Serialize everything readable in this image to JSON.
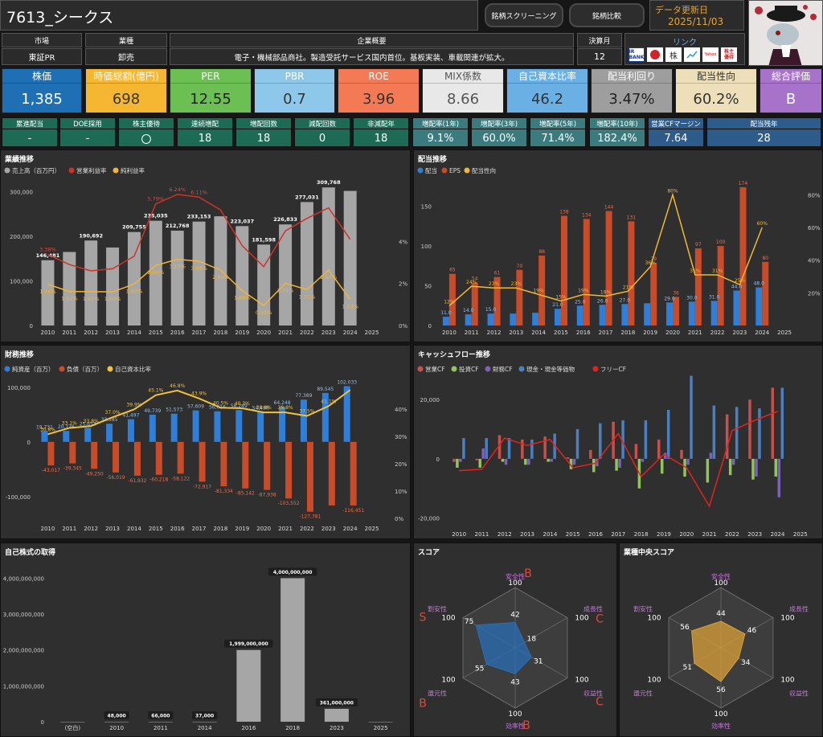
{
  "header": {
    "title": "7613_シークス",
    "screening_label": "銘柄スクリーニング",
    "compare_label": "銘柄比較",
    "update_label": "データ更新日",
    "update_date": "2025/11/03"
  },
  "info": {
    "market_label": "市場",
    "market_value": "東証PR",
    "industry_label": "業種",
    "industry_value": "卸売",
    "overview_label": "企業概要",
    "overview_value": "電子・機械部品商社。製造受託サービス国内首位。基板実装、車載関連が拡大。",
    "fiscal_label": "決算月",
    "fiscal_value": "12",
    "link_label": "リンク",
    "links": [
      "IR BANK",
      "kabutan",
      "株",
      "minkabu",
      "Yahoo",
      "株主優待"
    ]
  },
  "kpis": [
    {
      "label": "株価",
      "value": "1,385",
      "bg": "#1f6fb5",
      "lblcolor": "#fff",
      "valcolor": "#fff"
    },
    {
      "label": "時価総額(億円)",
      "value": "698",
      "bg": "#f5b731",
      "lblcolor": "#fff",
      "valcolor": "#333"
    },
    {
      "label": "PER",
      "value": "12.55",
      "bg": "#6cbf52",
      "lblcolor": "#fff",
      "valcolor": "#222"
    },
    {
      "label": "PBR",
      "value": "0.7",
      "bg": "#8dc8ea",
      "lblcolor": "#fff",
      "valcolor": "#333"
    },
    {
      "label": "ROE",
      "value": "3.96",
      "bg": "#f47a56",
      "lblcolor": "#fff",
      "valcolor": "#333"
    },
    {
      "label": "MIX係数",
      "value": "8.66",
      "bg": "#e8e8e8",
      "lblcolor": "#555",
      "valcolor": "#555"
    },
    {
      "label": "自己資本比率",
      "value": "46.2",
      "bg": "#6ab0e5",
      "lblcolor": "#fff",
      "valcolor": "#333"
    },
    {
      "label": "配当利回り",
      "value": "3.47%",
      "bg": "#9e9e9e",
      "lblcolor": "#fff",
      "valcolor": "#222"
    },
    {
      "label": "配当性向",
      "value": "60.2%",
      "bg": "#ecdfba",
      "lblcolor": "#333",
      "valcolor": "#333"
    },
    {
      "label": "総合評価",
      "value": "B",
      "bg": "#a772c9",
      "lblcolor": "#fff",
      "valcolor": "#fff"
    }
  ],
  "small": [
    {
      "label": "累進配当",
      "value": "-"
    },
    {
      "label": "DOE採用",
      "value": "-"
    },
    {
      "label": "株主優待",
      "value": "〇"
    },
    {
      "label": "連続増配",
      "value": "18"
    },
    {
      "label": "増配回数",
      "value": "18"
    },
    {
      "label": "減配回数",
      "value": "0"
    },
    {
      "label": "非減配年",
      "value": "18"
    },
    {
      "label": "増配率(1年)",
      "value": "9.1%"
    },
    {
      "label": "増配率(3年)",
      "value": "60.0%"
    },
    {
      "label": "増配率(5年)",
      "value": "71.4%"
    },
    {
      "label": "増配率(10年)",
      "value": "182.4%"
    },
    {
      "label": "営業CFマージン",
      "value": "7.64"
    },
    {
      "label": "配当残年",
      "value": "28"
    }
  ],
  "colors": {
    "sales": "#a6a6a6",
    "op": "#d03228",
    "net": "#f0b43c",
    "div": "#2f7ed8",
    "eps": "#c84b2a",
    "payout": "#f2b637",
    "asset": "#2f7ed8",
    "debt": "#c84b2a",
    "equity": "#f2c23a",
    "opcf": "#c8504b",
    "invcf": "#8fc65a",
    "fincf": "#7b61b8",
    "cash": "#4a7fc1",
    "fcf": "#e0241e",
    "score": "#2a6fb5",
    "ind": "#d9a039",
    "grade": "#e0483a",
    "radar_label": "#c277d6"
  },
  "perf": {
    "title": "業績推移",
    "chart_data": {
      "type": "bar",
      "categories": [
        "2010",
        "2011",
        "2012",
        "2013",
        "2014",
        "2015",
        "2016",
        "2017",
        "2018",
        "2019",
        "2020",
        "2021",
        "2022",
        "2023",
        "2024",
        "2025"
      ],
      "series": [
        {
          "name": "売上高（百万円）",
          "values": [
            146481,
            165000,
            190692,
            175000,
            209755,
            235035,
            212768,
            233153,
            245000,
            223037,
            181598,
            226833,
            277031,
            309768,
            302000,
            null
          ]
        },
        {
          "name": "営業利益率",
          "values": [
            3.38,
            2.9,
            2.6,
            2.7,
            3.3,
            5.79,
            6.24,
            6.11,
            5.5,
            3.8,
            2.8,
            4.5,
            5.1,
            5.6,
            4.1,
            null
          ]
        },
        {
          "name": "純利益率",
          "values": [
            1.96,
            1.62,
            1.61,
            1.6,
            1.97,
            2.86,
            3.15,
            3.06,
            2.64,
            1.66,
            0.95,
            2.01,
            1.71,
            2.64,
            1.24,
            null
          ]
        }
      ],
      "sales_labels": [
        "146,481",
        "",
        "190,692",
        "",
        "209,755",
        "235,035",
        "212,768",
        "233,153",
        "",
        "223,037",
        "181,598",
        "226,833",
        "277,031",
        "309,768",
        "",
        ""
      ],
      "op_labels": [
        "3.38%",
        "",
        "",
        "",
        "",
        "5.79%",
        "6.24%",
        "6.11%",
        "",
        "",
        "",
        "",
        "",
        "",
        "",
        ""
      ],
      "net_labels": [
        "1.96%",
        "1.62%",
        "1.61%",
        "1.60%",
        "1.97%",
        "2.86%",
        "3.15%",
        "3.06%",
        "2.64%",
        "1.66%",
        "0.95%",
        "2.01%",
        "1.71%",
        "2.64%",
        "1.24%",
        ""
      ],
      "yticks": [
        "0",
        "100,000",
        "200,000",
        "300,000"
      ],
      "y2ticks": [
        "0%",
        "2%",
        "4%"
      ],
      "ylim": [
        0,
        330000
      ],
      "y2lim": [
        0,
        7
      ]
    }
  },
  "div": {
    "title": "配当推移",
    "chart_data": {
      "type": "bar",
      "categories": [
        "2010",
        "2011",
        "2012",
        "2013",
        "2014",
        "2015",
        "2016",
        "2017",
        "2018",
        "2019",
        "2020",
        "2021",
        "2022",
        "2023",
        "2024",
        "2025"
      ],
      "series": [
        {
          "name": "配当",
          "values": [
            11,
            14,
            15,
            15,
            16,
            21,
            25,
            26,
            27,
            28,
            29,
            30,
            31,
            44,
            48,
            null
          ]
        },
        {
          "name": "EPS",
          "values": [
            65,
            54,
            61,
            70,
            88,
            138,
            134,
            144,
            131,
            79,
            36,
            97,
            100,
            174,
            80,
            null
          ]
        },
        {
          "name": "配当性向",
          "values": [
            12,
            24,
            23,
            23,
            19,
            15,
            19,
            18,
            21,
            36,
            80,
            31,
            31,
            25,
            60,
            null
          ]
        }
      ],
      "div_labels": [
        "11.0",
        "14.0",
        "15.0",
        "",
        "",
        "21.0",
        "25.0",
        "26.0",
        "27.0",
        "",
        "29.0",
        "30.0",
        "31.0",
        "44.0",
        "48.0",
        ""
      ],
      "eps_labels": [
        "65",
        "54",
        "61",
        "70",
        "88",
        "138",
        "134",
        "144",
        "131",
        "79",
        "36",
        "97",
        "100",
        "174",
        "80",
        ""
      ],
      "payout_labels": [
        "12%",
        "24%",
        "23%",
        "23%",
        "19%",
        "15%",
        "19%",
        "18%",
        "21%",
        "36%",
        "80%",
        "31%",
        "31%",
        "25%",
        "60%",
        ""
      ],
      "yticks": [
        "0",
        "50",
        "100",
        "150"
      ],
      "y2ticks": [
        "20%",
        "40%",
        "60%",
        "80%"
      ],
      "ylim": [
        0,
        185
      ],
      "y2lim": [
        0,
        90
      ]
    }
  },
  "fin": {
    "title": "財務推移",
    "chart_data": {
      "type": "bar",
      "categories": [
        "2010",
        "2011",
        "2012",
        "2013",
        "2014",
        "2015",
        "2016",
        "2017",
        "2018",
        "2019",
        "2020",
        "2021",
        "2022",
        "2023",
        "2024",
        "2025"
      ],
      "series": [
        {
          "name": "純資産（百万）",
          "values": [
            19731,
            20126,
            25653,
            33185,
            41497,
            49739,
            51573,
            57609,
            56016,
            58249,
            54498,
            64248,
            77389,
            89545,
            102033,
            null
          ]
        },
        {
          "name": "負債（百万）",
          "values": [
            -43017,
            -39345,
            -49250,
            -56019,
            -61932,
            -60218,
            -58122,
            -72917,
            -81334,
            -85142,
            -87938,
            -103552,
            -127781,
            -116451,
            -116451,
            null
          ]
        },
        {
          "name": "自己資本比率",
          "values": [
            30.8,
            33.1,
            33.8,
            37.0,
            39.9,
            45.1,
            46.8,
            43.9,
            40.5,
            40.3,
            38.8,
            38.8,
            37.5,
            41.1,
            47,
            null
          ]
        }
      ],
      "asset_labels": [
        "19,731",
        "20,126",
        "25,653",
        "33,185",
        "41,497",
        "49,739",
        "51,573",
        "57,609",
        "56,016",
        "58,249",
        "54,498",
        "64,248",
        "77,389",
        "89,545",
        "102,033",
        ""
      ],
      "debt_labels": [
        "-43,017",
        "-39,345",
        "-49,250",
        "-56,019",
        "-61,932",
        "-60,218",
        "-58,122",
        "-72,917",
        "-81,334",
        "-85,142",
        "-87,938",
        "-103,552",
        "-127,781",
        "",
        "-116,451",
        ""
      ],
      "eq_labels": [
        "30.8%",
        "33.1%",
        "33.8%",
        "37.0%",
        "39.9%",
        "45.1%",
        "46.8%",
        "43.9%",
        "40.5%",
        "40.3%",
        "38.8%",
        "38.8%",
        "37.5%",
        "41.1%",
        "",
        ""
      ],
      "yticks": [
        "-100,000",
        "0",
        "100,000"
      ],
      "y2ticks": [
        "0%",
        "10%",
        "20%",
        "30%",
        "40%"
      ],
      "ylim": [
        -140000,
        110000
      ],
      "y2lim": [
        0,
        50
      ]
    }
  },
  "cf": {
    "title": "キャッシュフロー推移",
    "chart_data": {
      "type": "bar",
      "categories": [
        "2010",
        "2011",
        "2012",
        "2013",
        "2014",
        "2015",
        "2016",
        "2017",
        "2018",
        "2019",
        "2020",
        "2021",
        "2022",
        "2023",
        "2024",
        "2025"
      ],
      "series": [
        {
          "name": "営業CF",
          "values": [
            -1000,
            -500,
            8000,
            6500,
            7500,
            500,
            3000,
            12500,
            5000,
            6500,
            3000,
            0,
            15000,
            20000,
            24000,
            null
          ]
        },
        {
          "name": "投資CF",
          "values": [
            -3000,
            -3000,
            -1000,
            -2000,
            -1000,
            -3500,
            -4500,
            -4000,
            -10000,
            -5000,
            -6000,
            -8000,
            -5500,
            -7000,
            -6000,
            null
          ]
        },
        {
          "name": "財務CF",
          "values": [
            -1000,
            3500,
            -2000,
            -2000,
            -1000,
            -2000,
            -2500,
            -3000,
            -1000,
            2000,
            -2000,
            2000,
            -2000,
            -6000,
            -13000,
            null
          ]
        },
        {
          "name": "現金・現金等価物",
          "values": [
            7000,
            7000,
            7000,
            6500,
            8500,
            10000,
            12000,
            13000,
            13000,
            16500,
            28000,
            18000,
            17500,
            17000,
            24000,
            null
          ]
        },
        {
          "name": "フリーCF",
          "values": [
            -4000,
            -3500,
            7000,
            4500,
            6500,
            -3000,
            -1500,
            8500,
            -6000,
            1500,
            -3000,
            -16000,
            9500,
            13000,
            16000,
            null
          ]
        }
      ],
      "yticks": [
        "-20,000",
        "0",
        "20,000"
      ],
      "ylim": [
        -22000,
        26000
      ]
    }
  },
  "buyback": {
    "title": "自己株式の取得",
    "chart_data": {
      "type": "bar",
      "categories": [
        "(空白)",
        "2010",
        "2011",
        "2014",
        "2016",
        "2018",
        "2023",
        "2025"
      ],
      "values": [
        0,
        48000,
        66000,
        37000,
        1999000000,
        4000000000,
        361000000,
        0
      ],
      "labels": [
        "",
        "48,000",
        "66,000",
        "37,000",
        "1,999,000,000",
        "4,000,000,000",
        "361,000,000",
        ""
      ],
      "yticks": [
        "0",
        "1,000,000,000",
        "2,000,000,000",
        "3,000,000,000",
        "4,000,000,000"
      ],
      "ylim": [
        0,
        4300000000
      ]
    }
  },
  "score": {
    "title": "スコア",
    "axes": [
      "安全性",
      "成長性",
      "収益性",
      "効率性",
      "還元性",
      "割安性"
    ],
    "values": [
      42,
      18,
      31,
      43,
      55,
      75
    ],
    "max": 100,
    "max_label": "100",
    "grades": [
      "B",
      "C",
      "C",
      "B",
      "B",
      "S"
    ]
  },
  "indscore": {
    "title": "業種中央スコア",
    "axes": [
      "安全性",
      "成長性",
      "収益性",
      "効率性",
      "還元性",
      "割安性"
    ],
    "values": [
      44,
      46,
      34,
      56,
      51,
      56
    ],
    "max": 100,
    "max_label": "100"
  }
}
